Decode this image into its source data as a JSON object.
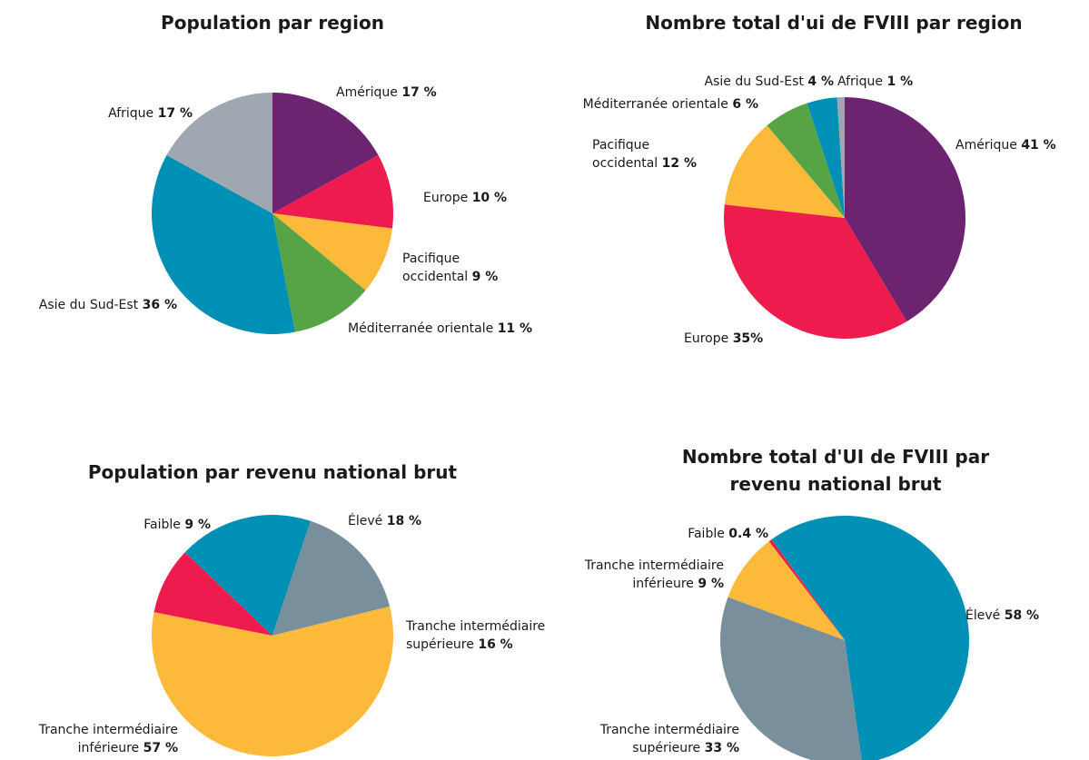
{
  "chart_data": [
    {
      "type": "pie",
      "title": "Population par region",
      "categories": [
        "Amérique",
        "Europe",
        "Pacifique occidental",
        "Méditerranée orientale",
        "Asie du Sud-Est",
        "Afrique"
      ],
      "values": [
        17,
        10,
        9,
        11,
        36,
        17
      ],
      "value_labels": [
        "17 %",
        "10 %",
        "9 %",
        "11 %",
        "36 %",
        "17 %"
      ],
      "colors": [
        "#6d2470",
        "#ee1c4e",
        "#fdb93a",
        "#57a447",
        "#0090b5",
        "#9fa8b0"
      ]
    },
    {
      "type": "pie",
      "title": "Nombre total d'ui de FVIII par region",
      "categories": [
        "Amérique",
        "Europe",
        "Pacifique occidental",
        "Méditerranée orientale",
        "Asie du Sud-Est",
        "Afrique"
      ],
      "values": [
        41,
        35,
        12,
        6,
        4,
        1
      ],
      "value_labels": [
        "41 %",
        "35%",
        "12 %",
        "6 %",
        "4 %",
        "1 %"
      ],
      "colors": [
        "#6d2470",
        "#ee1c4e",
        "#fdb93a",
        "#57a447",
        "#0090b5",
        "#9fa8b0"
      ]
    },
    {
      "type": "pie",
      "title": "Population par revenu national brut",
      "categories": [
        "Élevé",
        "Tranche intermédiaire supérieure",
        "Tranche intermédiaire inférieure",
        "Faible"
      ],
      "values": [
        18,
        16,
        57,
        9
      ],
      "value_labels": [
        "18 %",
        "16 %",
        "57 %",
        "9 %"
      ],
      "colors": [
        "#0090b5",
        "#7a8f9c",
        "#fdb93a",
        "#ee1c4e"
      ]
    },
    {
      "type": "pie",
      "title": "Nombre total d'UI de FVIII par revenu national brut",
      "categories": [
        "Élevé",
        "Tranche intermédiaire supérieure",
        "Tranche intermédiaire inférieure",
        "Faible"
      ],
      "values": [
        58,
        33,
        9,
        0.4
      ],
      "value_labels": [
        "58 %",
        "33 %",
        "9 %",
        "0.4 %"
      ],
      "colors": [
        "#0090b5",
        "#7a8f9c",
        "#fdb93a",
        "#ee1c4e"
      ]
    }
  ]
}
